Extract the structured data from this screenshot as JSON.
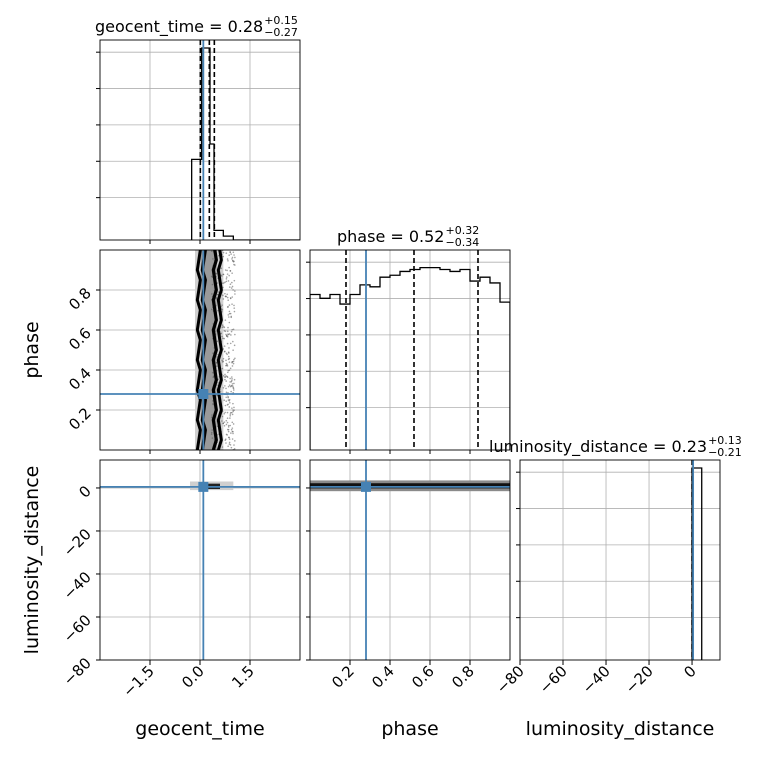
{
  "chart_data": {
    "type": "corner",
    "grid": true,
    "parameters": [
      "geocent_time",
      "phase",
      "luminosity_distance"
    ],
    "injection": {
      "geocent_time": 0.1,
      "phase": 0.28,
      "luminosity_distance": 0.5
    },
    "truth_color": "#4682b4",
    "hist_color": "#000000",
    "titles": [
      {
        "param": "geocent_time",
        "main": "geocent_time = 0.28",
        "sup": "+0.15",
        "sub": "−0.27"
      },
      {
        "param": "phase",
        "main": "phase = 0.52",
        "sup": "+0.32",
        "sub": "−0.34"
      },
      {
        "param": "luminosity_distance",
        "main": "luminosity_distance = 0.23",
        "sup": "+0.13",
        "sub": "−0.21"
      }
    ],
    "axes": {
      "geocent_time": {
        "label": "geocent_time",
        "range": [
          -3.0,
          3.0
        ],
        "ticks": [
          -1.5,
          0.0,
          1.5
        ],
        "tick_labels": [
          "−1.5",
          "0.0",
          "1.5"
        ]
      },
      "phase": {
        "label": "phase",
        "range": [
          0.0,
          1.0
        ],
        "ticks": [
          0.2,
          0.4,
          0.6,
          0.8
        ],
        "tick_labels": [
          "0.2",
          "0.4",
          "0.6",
          "0.8"
        ]
      },
      "luminosity_distance": {
        "label": "luminosity_distance",
        "range": [
          -80,
          13
        ],
        "ticks": [
          -80,
          -60,
          -40,
          -20,
          0
        ],
        "tick_labels": [
          "−80",
          "−60",
          "−40",
          "−20",
          "0"
        ]
      }
    },
    "histograms": {
      "geocent_time": {
        "bin_edges": [
          -0.25,
          0.05,
          0.3,
          0.42,
          0.7,
          1.0,
          3.0
        ],
        "counts": [
          0.42,
          1.0,
          0.5,
          0.05,
          0.02,
          0.0
        ],
        "quantiles": [
          0.01,
          0.28,
          0.43
        ]
      },
      "phase": {
        "bin_edges": [
          0.0,
          0.05,
          0.1,
          0.15,
          0.2,
          0.25,
          0.3,
          0.35,
          0.4,
          0.45,
          0.5,
          0.55,
          0.6,
          0.65,
          0.7,
          0.75,
          0.8,
          0.85,
          0.9,
          0.95,
          1.0
        ],
        "counts": [
          0.81,
          0.79,
          0.81,
          0.76,
          0.81,
          0.86,
          0.85,
          0.9,
          0.91,
          0.93,
          0.94,
          0.95,
          0.95,
          0.94,
          0.93,
          0.94,
          0.88,
          0.9,
          0.87,
          0.77
        ],
        "quantiles": [
          0.18,
          0.52,
          0.84
        ]
      },
      "luminosity_distance": {
        "bin_edges": [
          0.0,
          2.5,
          4.5
        ],
        "counts": [
          1.0,
          1.0
        ],
        "quantiles": [
          0.02,
          0.23,
          0.36
        ]
      }
    }
  }
}
